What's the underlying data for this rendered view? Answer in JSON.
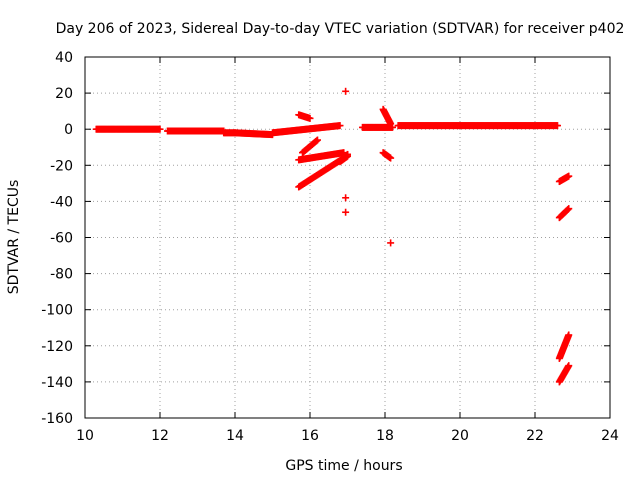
{
  "chart_data": {
    "type": "scatter",
    "title": "Day 206 of 2023, Sidereal Day-to-day VTEC variation (SDTVAR) for receiver p402",
    "xlabel": "GPS time / hours",
    "ylabel": "SDTVAR / TECUs",
    "xlim": [
      10,
      24
    ],
    "ylim": [
      -160,
      40
    ],
    "xticks": [
      10,
      12,
      14,
      16,
      18,
      20,
      22,
      24
    ],
    "yticks": [
      -160,
      -140,
      -120,
      -100,
      -80,
      -60,
      -40,
      -20,
      0,
      20,
      40
    ],
    "grid": true,
    "marker": "+",
    "color": "#ff0000",
    "segments": [
      {
        "x": [
          10.3,
          12.0
        ],
        "y": [
          0,
          0
        ]
      },
      {
        "x": [
          12.2,
          13.7
        ],
        "y": [
          -1,
          -1
        ]
      },
      {
        "x": [
          13.7,
          14.0
        ],
        "y": [
          -2,
          -2
        ]
      },
      {
        "x": [
          14.0,
          15.0
        ],
        "y": [
          -2,
          -3
        ]
      },
      {
        "x": [
          15.0,
          16.8
        ],
        "y": [
          -2,
          2
        ]
      },
      {
        "x": [
          15.7,
          16.0
        ],
        "y": [
          8,
          6
        ]
      },
      {
        "x": [
          15.8,
          16.2
        ],
        "y": [
          -13,
          -6
        ]
      },
      {
        "x": [
          15.7,
          16.9
        ],
        "y": [
          -17,
          -13
        ]
      },
      {
        "x": [
          15.7,
          16.9
        ],
        "y": [
          -32,
          -16
        ]
      },
      {
        "x": [
          16.8,
          17.0
        ],
        "y": [
          -18,
          -15
        ]
      },
      {
        "x": [
          17.0,
          17.0
        ],
        "y": [
          -14,
          -14
        ]
      },
      {
        "x": [
          17.4,
          18.2
        ],
        "y": [
          1,
          1
        ]
      },
      {
        "x": [
          17.95,
          18.15
        ],
        "y": [
          11,
          3
        ]
      },
      {
        "x": [
          17.95,
          18.15
        ],
        "y": [
          -13,
          -16
        ]
      },
      {
        "x": [
          18.35,
          22.6
        ],
        "y": [
          2,
          2
        ]
      },
      {
        "x": [
          22.65,
          22.9
        ],
        "y": [
          -29,
          -26
        ]
      },
      {
        "x": [
          22.65,
          22.9
        ],
        "y": [
          -49,
          -44
        ]
      },
      {
        "x": [
          22.65,
          22.9
        ],
        "y": [
          -127,
          -114
        ]
      },
      {
        "x": [
          22.65,
          22.9
        ],
        "y": [
          -140,
          -131
        ]
      }
    ],
    "points": [
      {
        "x": 16.95,
        "y": 21
      },
      {
        "x": 16.95,
        "y": -38
      },
      {
        "x": 16.95,
        "y": -46
      },
      {
        "x": 18.15,
        "y": -63
      }
    ]
  }
}
